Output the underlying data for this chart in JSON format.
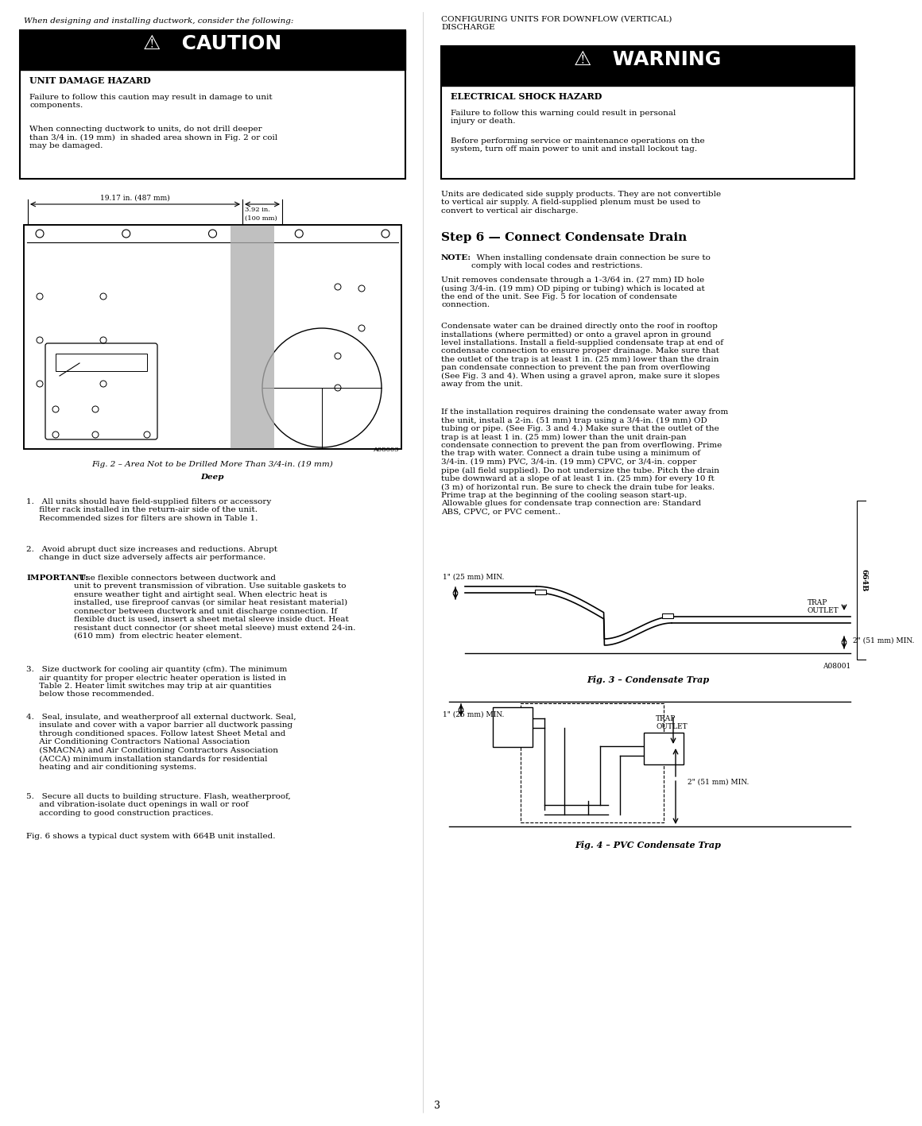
{
  "page_width": 10.8,
  "page_height": 13.97,
  "bg_color": "#ffffff",
  "page_num": "3",
  "sidebar_label": "664B",
  "left_intro": "When designing and installing ductwork, consider the following:",
  "right_intro": "CONFIGURING UNITS FOR DOWNFLOW (VERTICAL)\nDISCHARGE",
  "caution_title": "⚠   CAUTION",
  "caution_subtitle": "UNIT DAMAGE HAZARD",
  "caution_body1": "Failure to follow this caution may result in damage to unit\ncomponents.",
  "caution_body2": "When connecting ductwork to units, do not drill deeper\nthan 3/4 in. (19 mm)  in shaded area shown in Fig. 2 or coil\nmay be damaged.",
  "warning_title": "⚠   WARNING",
  "warning_subtitle": "ELECTRICAL SHOCK HAZARD",
  "warning_body1": "Failure to follow this warning could result in personal\ninjury or death.",
  "warning_body2": "Before performing service or maintenance operations on the\nsystem, turn off main power to unit and install lockout tag.",
  "fig2_caption_line1": "Fig. 2 – Area Not to be Drilled More Than 3/4-in. (19 mm)",
  "fig2_caption_line2": "Deep",
  "fig2_note": "A08003",
  "dim1_label": "19.17 in. (487 mm)",
  "dim2_line1": "3.92 in.",
  "dim2_line2": "(100 mm)",
  "right_para1": "Units are dedicated side supply products. They are not convertible\nto vertical air supply. A field-supplied plenum must be used to\nconvert to vertical air discharge.",
  "step6_title": "Step 6 — Connect Condensate Drain",
  "note_text": "NOTE:   When installing condensate drain connection be sure to\ncomply with local codes and restrictions.",
  "para_cd1": "Unit removes condensate through a 1-3/64 in. (27 mm) ID hole\n(using 3/4-in. (19 mm) OD piping or tubing) which is located at\nthe end of the unit. See Fig. 5 for location of condensate\nconnection.",
  "para_cd2": "Condensate water can be drained directly onto the roof in rooftop\ninstallations (where permitted) or onto a gravel apron in ground\nlevel installations. Install a field-supplied condensate trap at end of\ncondensate connection to ensure proper drainage. Make sure that\nthe outlet of the trap is at least 1 in. (25 mm) lower than the drain\npan condensate connection to prevent the pan from overflowing\n(See Fig. 3 and 4). When using a gravel apron, make sure it slopes\naway from the unit.",
  "para_cd3": "If the installation requires draining the condensate water away from\nthe unit, install a 2-in. (51 mm) trap using a 3/4-in. (19 mm) OD\ntubing or pipe. (See Fig. 3 and 4.) Make sure that the outlet of the\ntrap is at least 1 in. (25 mm) lower than the unit drain-pan\ncondensate connection to prevent the pan from overflowing. Prime\nthe trap with water. Connect a drain tube using a minimum of\n3/4-in. (19 mm) PVC, 3/4-in. (19 mm) CPVC, or 3/4-in. copper\npipe (all field supplied). Do not undersize the tube. Pitch the drain\ntube downward at a slope of at least 1 in. (25 mm) for every 10 ft\n(3 m) of horizontal run. Be sure to check the drain tube for leaks.\nPrime trap at the beginning of the cooling season start-up.\nAllowable glues for condensate trap connection are: Standard\nABS, CPVC, or PVC cement..",
  "fig3_caption": "Fig. 3 – Condensate Trap",
  "fig3_note": "A08001",
  "fig4_caption": "Fig. 4 – PVC Condensate Trap",
  "list_item1": "1.   All units should have field-supplied filters or accessory\n     filter rack installed in the return-air side of the unit.\n     Recommended sizes for filters are shown in Table 1.",
  "list_item2": "2.   Avoid abrupt duct size increases and reductions. Abrupt\n     change in duct size adversely affects air performance.",
  "list_important": "IMPORTANT:  Use flexible connectors between ductwork and\nunit to prevent transmission of vibration. Use suitable gaskets to\nensure weather tight and airtight seal. When electric heat is\ninstalled, use fireproof canvas (or similar heat resistant material)\nconnector between ductwork and unit discharge connection. If\nflexible duct is used, insert a sheet metal sleeve inside duct. Heat\nresistant duct connector (or sheet metal sleeve) must extend 24-in.\n(610 mm)  from electric heater element.",
  "list_item3": "3.   Size ductwork for cooling air quantity (cfm). The minimum\n     air quantity for proper electric heater operation is listed in\n     Table 2. Heater limit switches may trip at air quantities\n     below those recommended.",
  "list_item4": "4.   Seal, insulate, and weatherproof all external ductwork. Seal,\n     insulate and cover with a vapor barrier all ductwork passing\n     through conditioned spaces. Follow latest Sheet Metal and\n     Air Conditioning Contractors National Association\n     (SMACNA) and Air Conditioning Contractors Association\n     (ACCA) minimum installation standards for residential\n     heating and air conditioning systems.",
  "list_item5": "5.   Secure all ducts to building structure. Flash, weatherproof,\n     and vibration-isolate duct openings in wall or roof\n     according to good construction practices.",
  "list_fig6": "Fig. 6 shows a typical duct system with 664B unit installed.",
  "trap_label1": "1\" (25 mm) MIN.",
  "trap_label2": "TRAP\nOUTLET",
  "trap_label3": "2\" (51 mm) MIN.",
  "pvc_trap_label1": "1\" (25 mm) MIN.",
  "pvc_trap_label2": "TRAP\nOUTLET",
  "pvc_trap_label3": "2\" (51 mm) MIN."
}
